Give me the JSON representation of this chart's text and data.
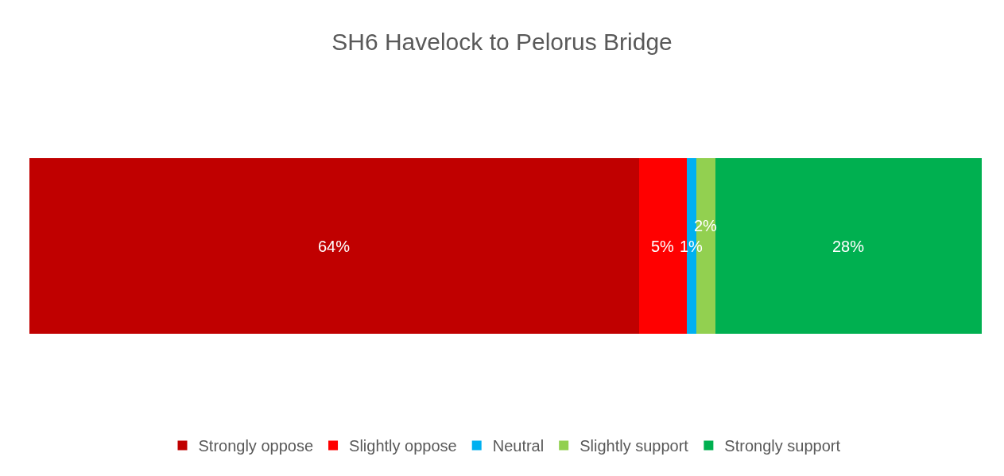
{
  "chart_data": {
    "type": "bar",
    "title": "SH6 Havelock to Pelorus Bridge",
    "orientation": "horizontal",
    "stacked": true,
    "categories": [
      null
    ],
    "series": [
      {
        "name": "Strongly oppose",
        "color": "#c00000",
        "values": [
          64
        ],
        "value_labels": [
          "64%"
        ]
      },
      {
        "name": "Slightly oppose",
        "color": "#ff0000",
        "values": [
          5
        ],
        "value_labels": [
          "5%"
        ]
      },
      {
        "name": "Neutral",
        "color": "#00b0f0",
        "values": [
          1
        ],
        "value_labels": [
          "1%"
        ]
      },
      {
        "name": "Slightly support",
        "color": "#92d050",
        "values": [
          2
        ],
        "value_labels": [
          "2%"
        ]
      },
      {
        "name": "Strongly support",
        "color": "#00b050",
        "values": [
          28
        ],
        "value_labels": [
          "28%"
        ]
      }
    ],
    "xlim": [
      0,
      100
    ],
    "tick_labels": false,
    "legend": "bottom"
  }
}
